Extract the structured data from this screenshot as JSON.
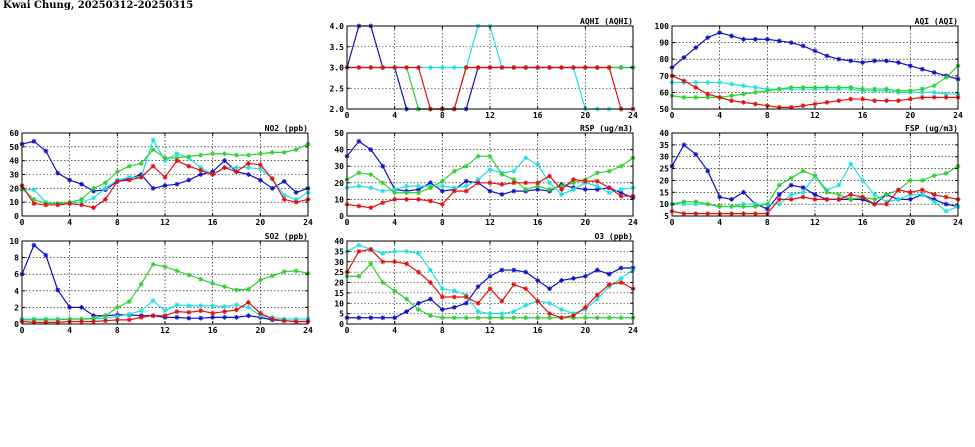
{
  "page": {
    "title": "Kwai Chung, 20250312-20250315"
  },
  "colors": {
    "blue": "#1010c8",
    "red": "#e01010",
    "green": "#30d030",
    "cyan": "#20e0e0"
  },
  "chart_data": [
    {
      "id": "aqhi",
      "type": "line",
      "title": "AQHI (AQHI)",
      "x": [
        0,
        1,
        2,
        3,
        4,
        5,
        6,
        7,
        8,
        9,
        10,
        11,
        12,
        13,
        14,
        15,
        16,
        17,
        18,
        19,
        20,
        21,
        22,
        23,
        24
      ],
      "xlim": [
        0,
        24
      ],
      "ylim": [
        2,
        4
      ],
      "xticks": [
        0,
        4,
        8,
        12,
        16,
        20,
        24
      ],
      "yticks": [
        2.0,
        2.5,
        3.0,
        3.5,
        4.0
      ],
      "ytick_labels": [
        "2.0",
        "2.5",
        "3.0",
        "3.5",
        "4.0"
      ],
      "series": [
        {
          "color": "blue",
          "values": [
            3,
            4,
            4,
            3,
            3,
            2,
            2,
            2,
            2,
            2,
            2,
            3,
            3,
            3,
            3,
            3,
            3,
            3,
            3,
            3,
            3,
            3,
            3,
            3,
            3
          ]
        },
        {
          "color": "green",
          "values": [
            3,
            3,
            3,
            3,
            3,
            3,
            2,
            2,
            2,
            2,
            3,
            3,
            3,
            3,
            3,
            3,
            3,
            3,
            3,
            3,
            3,
            3,
            3,
            3,
            3
          ]
        },
        {
          "color": "cyan",
          "values": [
            3,
            3,
            3,
            3,
            3,
            3,
            3,
            3,
            3,
            3,
            3,
            4,
            4,
            3,
            3,
            3,
            3,
            3,
            3,
            3,
            2,
            2,
            2,
            2,
            2
          ]
        },
        {
          "color": "red",
          "values": [
            3,
            3,
            3,
            3,
            3,
            3,
            3,
            2,
            2,
            2,
            3,
            3,
            3,
            3,
            3,
            3,
            3,
            3,
            3,
            3,
            3,
            3,
            3,
            2,
            2
          ]
        }
      ]
    },
    {
      "id": "aqi",
      "type": "line",
      "title": "AQI (AQI)",
      "x": [
        0,
        1,
        2,
        3,
        4,
        5,
        6,
        7,
        8,
        9,
        10,
        11,
        12,
        13,
        14,
        15,
        16,
        17,
        18,
        19,
        20,
        21,
        22,
        23,
        24
      ],
      "xlim": [
        0,
        24
      ],
      "ylim": [
        50,
        100
      ],
      "xticks": [
        0,
        4,
        8,
        12,
        16,
        20,
        24
      ],
      "yticks": [
        50,
        60,
        70,
        80,
        90,
        100
      ],
      "ytick_labels": [
        "50",
        "60",
        "70",
        "80",
        "90",
        "100"
      ],
      "series": [
        {
          "color": "blue",
          "values": [
            75,
            81,
            87,
            93,
            96,
            94,
            92,
            92,
            92,
            91,
            90,
            88,
            85,
            82,
            80,
            79,
            78,
            79,
            79,
            78,
            76,
            74,
            72,
            70,
            68
          ]
        },
        {
          "color": "cyan",
          "values": [
            66,
            66,
            66,
            66,
            66,
            65,
            64,
            63,
            62,
            62,
            62,
            62,
            62,
            62,
            62,
            62,
            61,
            61,
            61,
            60,
            60,
            60,
            60,
            59,
            59
          ]
        },
        {
          "color": "green",
          "values": [
            58,
            57,
            57,
            57,
            57,
            58,
            59,
            60,
            61,
            62,
            63,
            63,
            63,
            63,
            63,
            63,
            62,
            62,
            62,
            61,
            61,
            62,
            64,
            69,
            76
          ]
        },
        {
          "color": "red",
          "values": [
            70,
            67,
            63,
            59,
            57,
            55,
            54,
            53,
            52,
            51,
            51,
            52,
            53,
            54,
            55,
            56,
            56,
            55,
            55,
            55,
            56,
            57,
            57,
            57,
            57
          ]
        }
      ]
    },
    {
      "id": "no2",
      "type": "line",
      "title": "NO2 (ppb)",
      "x": [
        0,
        1,
        2,
        3,
        4,
        5,
        6,
        7,
        8,
        9,
        10,
        11,
        12,
        13,
        14,
        15,
        16,
        17,
        18,
        19,
        20,
        21,
        22,
        23,
        24
      ],
      "xlim": [
        0,
        24
      ],
      "ylim": [
        0,
        60
      ],
      "xticks": [
        0,
        4,
        8,
        12,
        16,
        20,
        24
      ],
      "yticks": [
        0,
        10,
        20,
        30,
        40,
        50,
        60
      ],
      "ytick_labels": [
        "0",
        "10",
        "20",
        "30",
        "40",
        "50",
        "60"
      ],
      "series": [
        {
          "color": "blue",
          "values": [
            52,
            54,
            47,
            31,
            26,
            23,
            18,
            19,
            25,
            27,
            30,
            20,
            22,
            23,
            26,
            30,
            32,
            40,
            32,
            30,
            26,
            20,
            25,
            17,
            20
          ]
        },
        {
          "color": "cyan",
          "values": [
            19,
            19,
            10,
            9,
            9,
            10,
            13,
            20,
            26,
            28,
            28,
            55,
            40,
            45,
            42,
            35,
            30,
            35,
            35,
            35,
            34,
            27,
            15,
            12,
            17
          ]
        },
        {
          "color": "green",
          "values": [
            20,
            12,
            9,
            9,
            10,
            12,
            20,
            24,
            32,
            36,
            38,
            48,
            42,
            42,
            43,
            44,
            45,
            45,
            44,
            44,
            45,
            46,
            46,
            48,
            52
          ]
        },
        {
          "color": "red",
          "values": [
            22,
            9,
            8,
            8,
            9,
            8,
            6,
            12,
            25,
            26,
            28,
            36,
            28,
            40,
            36,
            33,
            30,
            35,
            32,
            38,
            37,
            27,
            12,
            10,
            12
          ]
        }
      ]
    },
    {
      "id": "rsp",
      "type": "line",
      "title": "RSP (ug/m3)",
      "x": [
        0,
        1,
        2,
        3,
        4,
        5,
        6,
        7,
        8,
        9,
        10,
        11,
        12,
        13,
        14,
        15,
        16,
        17,
        18,
        19,
        20,
        21,
        22,
        23,
        24
      ],
      "xlim": [
        0,
        24
      ],
      "ylim": [
        0,
        50
      ],
      "xticks": [
        0,
        4,
        8,
        12,
        16,
        20,
        24
      ],
      "yticks": [
        0,
        10,
        20,
        30,
        40,
        50
      ],
      "ytick_labels": [
        "0",
        "10",
        "20",
        "30",
        "40",
        "50"
      ],
      "series": [
        {
          "color": "blue",
          "values": [
            36,
            45,
            40,
            30,
            16,
            15,
            16,
            20,
            15,
            16,
            21,
            20,
            15,
            13,
            15,
            15,
            16,
            15,
            19,
            17,
            16,
            16,
            17,
            14,
            11
          ]
        },
        {
          "color": "cyan",
          "values": [
            17,
            18,
            17,
            15,
            16,
            18,
            18,
            18,
            18,
            17,
            18,
            22,
            28,
            26,
            27,
            35,
            31,
            20,
            13,
            16,
            20,
            18,
            14,
            16,
            17
          ]
        },
        {
          "color": "green",
          "values": [
            22,
            26,
            25,
            20,
            14,
            14,
            14,
            17,
            21,
            27,
            30,
            36,
            36,
            25,
            22,
            16,
            18,
            16,
            18,
            20,
            22,
            26,
            27,
            30,
            35
          ]
        },
        {
          "color": "red",
          "values": [
            7,
            6,
            5,
            8,
            10,
            10,
            10,
            9,
            7,
            15,
            15,
            20,
            20,
            19,
            20,
            20,
            20,
            24,
            16,
            22,
            21,
            21,
            17,
            12,
            12
          ]
        }
      ]
    },
    {
      "id": "fsp",
      "type": "line",
      "title": "FSP (ug/m3)",
      "x": [
        0,
        1,
        2,
        3,
        4,
        5,
        6,
        7,
        8,
        9,
        10,
        11,
        12,
        13,
        14,
        15,
        16,
        17,
        18,
        19,
        20,
        21,
        22,
        23,
        24
      ],
      "xlim": [
        0,
        24
      ],
      "ylim": [
        5,
        40
      ],
      "xticks": [
        0,
        4,
        8,
        12,
        16,
        20,
        24
      ],
      "yticks": [
        5,
        10,
        15,
        20,
        25,
        30,
        35,
        40
      ],
      "ytick_labels": [
        "5",
        "10",
        "15",
        "20",
        "25",
        "30",
        "35",
        "40"
      ],
      "series": [
        {
          "color": "blue",
          "values": [
            26,
            35,
            31,
            24,
            13,
            12,
            15,
            10,
            8,
            14,
            18,
            17,
            14,
            12,
            12,
            12,
            12,
            10,
            14,
            12,
            12,
            14,
            12,
            10,
            9
          ]
        },
        {
          "color": "cyan",
          "values": [
            10,
            10,
            10,
            10,
            9,
            9,
            10,
            10,
            10,
            10,
            14,
            15,
            22,
            16,
            18,
            27,
            20,
            14,
            11,
            12,
            14,
            14,
            11,
            7,
            9
          ]
        },
        {
          "color": "green",
          "values": [
            10,
            11,
            11,
            10,
            9,
            9,
            9,
            9,
            10,
            18,
            21,
            24,
            22,
            15,
            14,
            12,
            13,
            12,
            14,
            16,
            20,
            20,
            22,
            23,
            26
          ]
        },
        {
          "color": "red",
          "values": [
            7,
            6,
            6,
            6,
            6,
            6,
            6,
            6,
            6,
            12,
            12,
            13,
            12,
            12,
            12,
            14,
            13,
            10,
            10,
            16,
            15,
            16,
            14,
            13,
            12
          ]
        }
      ]
    },
    {
      "id": "so2",
      "type": "line",
      "title": "SO2 (ppb)",
      "x": [
        0,
        1,
        2,
        3,
        4,
        5,
        6,
        7,
        8,
        9,
        10,
        11,
        12,
        13,
        14,
        15,
        16,
        17,
        18,
        19,
        20,
        21,
        22,
        23,
        24
      ],
      "xlim": [
        0,
        24
      ],
      "ylim": [
        0,
        10
      ],
      "xticks": [
        0,
        4,
        8,
        12,
        16,
        20,
        24
      ],
      "yticks": [
        0,
        2,
        4,
        6,
        8,
        10
      ],
      "ytick_labels": [
        "0",
        "2",
        "4",
        "6",
        "8",
        "10"
      ],
      "series": [
        {
          "color": "blue",
          "values": [
            6,
            9.5,
            8.3,
            4.1,
            2,
            2,
            1,
            1,
            1.1,
            1.1,
            1,
            1,
            0.8,
            0.8,
            0.7,
            0.7,
            0.8,
            0.8,
            0.8,
            1,
            0.8,
            0.5,
            0.4,
            0.3,
            0.3
          ]
        },
        {
          "color": "cyan",
          "values": [
            0.6,
            0.6,
            0.6,
            0.6,
            0.6,
            0.6,
            0.6,
            0.7,
            0.9,
            1.2,
            1.6,
            2.8,
            1.6,
            2.3,
            2.2,
            2.2,
            2.2,
            2.1,
            2.3,
            2,
            1,
            0.8,
            0.6,
            0.6,
            0.6
          ]
        },
        {
          "color": "green",
          "values": [
            0.5,
            0.5,
            0.5,
            0.5,
            0.6,
            0.6,
            0.7,
            1,
            2,
            2.7,
            4.8,
            7.2,
            6.9,
            6.4,
            5.9,
            5.4,
            4.9,
            4.5,
            4.1,
            4.2,
            5.3,
            5.8,
            6.3,
            6.4,
            6.1
          ]
        },
        {
          "color": "red",
          "values": [
            0.3,
            0.2,
            0.2,
            0.2,
            0.3,
            0.3,
            0.3,
            0.4,
            0.5,
            0.5,
            0.8,
            1,
            1,
            1.5,
            1.4,
            1.6,
            1.3,
            1.5,
            1.7,
            2.6,
            1.3,
            0.6,
            0.4,
            0.3,
            0.3
          ]
        }
      ]
    },
    {
      "id": "o3",
      "type": "line",
      "title": "O3 (ppb)",
      "x": [
        0,
        1,
        2,
        3,
        4,
        5,
        6,
        7,
        8,
        9,
        10,
        11,
        12,
        13,
        14,
        15,
        16,
        17,
        18,
        19,
        20,
        21,
        22,
        23,
        24
      ],
      "xlim": [
        0,
        24
      ],
      "ylim": [
        0,
        40
      ],
      "xticks": [
        0,
        4,
        8,
        12,
        16,
        20,
        24
      ],
      "yticks": [
        0,
        5,
        10,
        15,
        20,
        25,
        30,
        35,
        40
      ],
      "ytick_labels": [
        "0",
        "5",
        "10",
        "15",
        "20",
        "25",
        "30",
        "35",
        "40"
      ],
      "series": [
        {
          "color": "blue",
          "values": [
            3,
            3,
            3,
            3,
            3,
            6,
            10,
            12,
            7,
            8,
            10,
            18,
            23,
            26,
            26,
            25,
            21,
            17,
            21,
            22,
            23,
            26,
            24,
            27,
            27
          ]
        },
        {
          "color": "cyan",
          "values": [
            35,
            38,
            36,
            34,
            35,
            35,
            34,
            26,
            17,
            16,
            14,
            6,
            5,
            5,
            6,
            9,
            11,
            10,
            7,
            5,
            7,
            12,
            18,
            22,
            26
          ]
        },
        {
          "color": "green",
          "values": [
            23,
            23,
            29,
            20,
            16,
            12,
            7,
            4,
            3,
            3,
            3,
            3,
            3,
            3,
            3,
            3,
            3,
            3,
            3,
            3,
            3,
            3,
            3,
            3,
            3
          ]
        },
        {
          "color": "red",
          "values": [
            25,
            35,
            36,
            30,
            30,
            29,
            25,
            20,
            13,
            13,
            13,
            10,
            17,
            11,
            19,
            17,
            11,
            5,
            3,
            4,
            8,
            14,
            19,
            20,
            17
          ]
        }
      ]
    }
  ]
}
